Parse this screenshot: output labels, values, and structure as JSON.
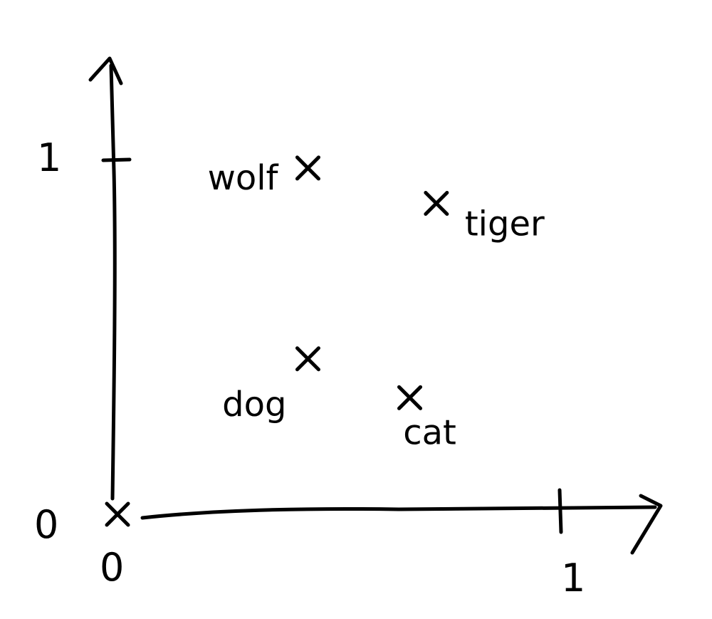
{
  "chart_data": {
    "type": "scatter",
    "title": "",
    "xlabel": "",
    "ylabel": "",
    "xlim": [
      0,
      1
    ],
    "ylim": [
      0,
      1
    ],
    "grid": false,
    "x_ticks": [
      "0",
      "1"
    ],
    "y_ticks": [
      "0",
      "1"
    ],
    "points": [
      {
        "label": "",
        "x": 0.0,
        "y": 0.0
      },
      {
        "label": "wolf",
        "x": 0.43,
        "y": 0.98
      },
      {
        "label": "tiger",
        "x": 0.72,
        "y": 0.88
      },
      {
        "label": "dog",
        "x": 0.43,
        "y": 0.44
      },
      {
        "label": "cat",
        "x": 0.66,
        "y": 0.33
      }
    ]
  }
}
